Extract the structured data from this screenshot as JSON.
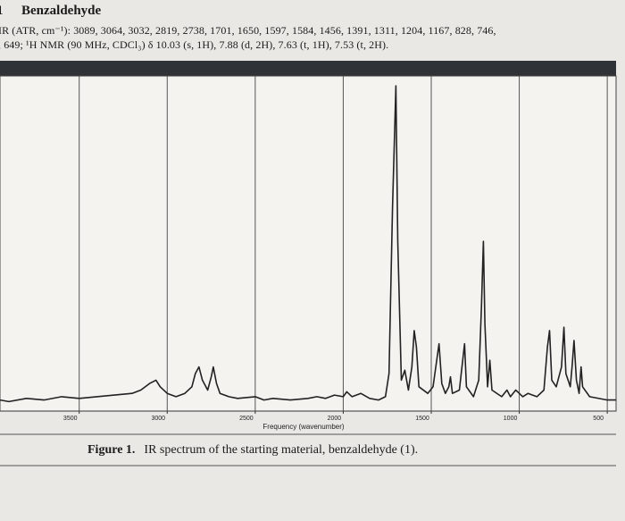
{
  "header": {
    "number": "1",
    "title": "Benzaldehyde",
    "lines": [
      "IR (ATR, cm⁻¹): 3089, 3064, 3032, 2819, 2738, 1701, 1650, 1597, 1584, 1456, 1391, 1311, 1204, 1167, 828, 746,",
      ", 649; ¹H NMR (90 MHz, CDCl₃) δ 10.03 (s, 1H), 7.88 (d, 2H), 7.63 (t, 1H), 7.53 (t, 2H)."
    ]
  },
  "chart_data": {
    "type": "line",
    "x_label": "Frequency (wavenumber)",
    "color": "#222222",
    "xlim": [
      3950,
      450
    ],
    "ylim": [
      0,
      100
    ],
    "xticks": [
      3500,
      3000,
      2500,
      2000,
      1500,
      1000,
      500
    ],
    "grid": true,
    "x": [
      3950,
      3900,
      3800,
      3700,
      3600,
      3500,
      3400,
      3300,
      3200,
      3150,
      3100,
      3064,
      3040,
      3000,
      2950,
      2900,
      2860,
      2840,
      2820,
      2800,
      2770,
      2750,
      2738,
      2720,
      2700,
      2650,
      2600,
      2500,
      2450,
      2400,
      2300,
      2200,
      2150,
      2100,
      2050,
      2000,
      1980,
      1950,
      1900,
      1850,
      1800,
      1760,
      1740,
      1720,
      1701,
      1690,
      1670,
      1650,
      1630,
      1610,
      1597,
      1584,
      1570,
      1520,
      1490,
      1456,
      1440,
      1420,
      1400,
      1391,
      1380,
      1340,
      1311,
      1300,
      1260,
      1230,
      1215,
      1204,
      1195,
      1180,
      1167,
      1155,
      1100,
      1070,
      1050,
      1020,
      1000,
      980,
      950,
      900,
      860,
      840,
      828,
      815,
      790,
      760,
      746,
      735,
      710,
      700,
      689,
      675,
      660,
      649,
      640,
      600,
      500,
      450
    ],
    "values": [
      2,
      1.5,
      2.5,
      2,
      3,
      2.5,
      3,
      3.5,
      4,
      5,
      7,
      8,
      6,
      4,
      3,
      4,
      6,
      10,
      12,
      8,
      5,
      9,
      12,
      7,
      4,
      3,
      2.5,
      3,
      2,
      2.5,
      2,
      2.5,
      3,
      2.5,
      3.5,
      3,
      4.5,
      3,
      4,
      2.5,
      2,
      3,
      10,
      60,
      97,
      50,
      8,
      11,
      5,
      12,
      23,
      18,
      6,
      4,
      6,
      19,
      7,
      4,
      6,
      9,
      4,
      5,
      19,
      6,
      3,
      8,
      30,
      50,
      25,
      6,
      14,
      5,
      3,
      5,
      3,
      5,
      4,
      3,
      4,
      3,
      5,
      18,
      23,
      8,
      6,
      12,
      24,
      10,
      6,
      12,
      20,
      8,
      4,
      12,
      6,
      3,
      2,
      2
    ]
  },
  "caption": {
    "label": "Figure 1.",
    "text": "IR spectrum of the starting material, benzaldehyde (1)."
  }
}
